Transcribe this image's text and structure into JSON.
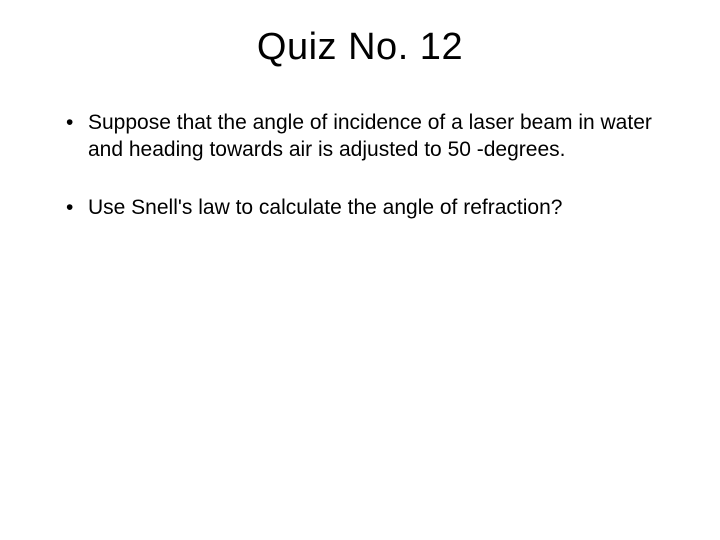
{
  "title": "Quiz No. 12",
  "bullets": [
    "Suppose that the angle of incidence of a laser beam in water and heading towards air is adjusted to 50 -degrees.",
    "Use Snell's law to calculate the angle of refraction?"
  ],
  "colors": {
    "background": "#ffffff",
    "text": "#000000"
  },
  "typography": {
    "title_fontsize": 38,
    "body_fontsize": 21,
    "font_family": "Arial"
  }
}
